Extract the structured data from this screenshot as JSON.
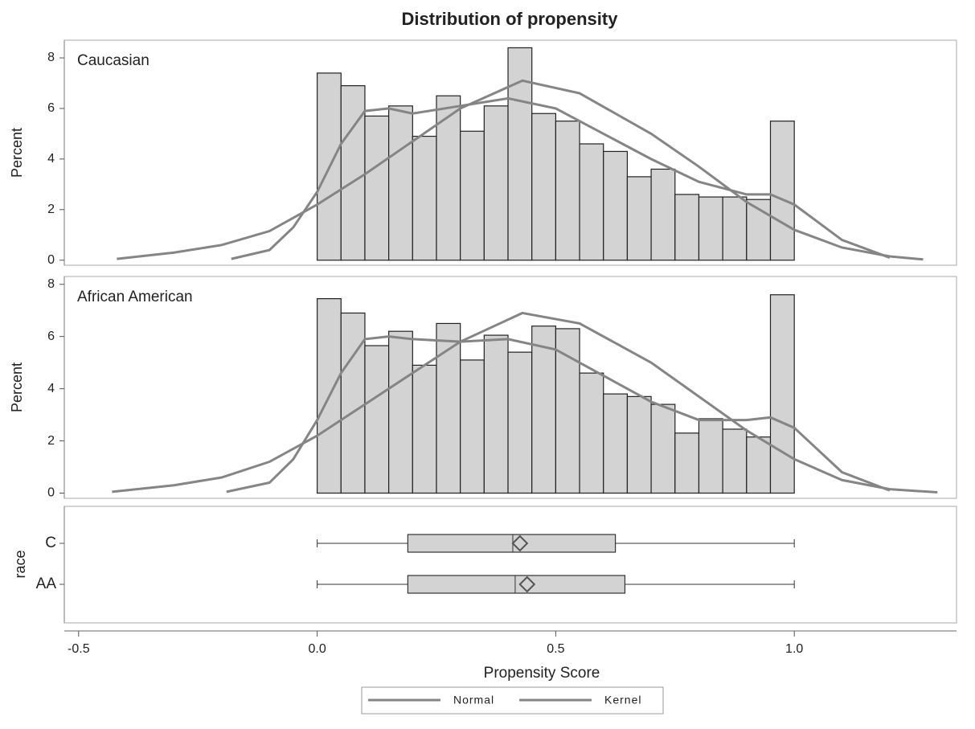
{
  "chart_data": {
    "type": "histogram",
    "title": "Distribution of propensity",
    "x_label": "Propensity Score",
    "xlim": [
      -0.53,
      1.34
    ],
    "xticks": [
      -0.5,
      {
        "value": 0,
        "label": "0.0"
      },
      0.5,
      {
        "value": 1,
        "label": "1.0"
      }
    ],
    "bins": [
      0,
      0.05,
      0.1,
      0.15,
      0.2,
      0.25,
      0.3,
      0.35,
      0.4,
      0.45,
      0.5,
      0.55,
      0.6,
      0.65,
      0.7,
      0.75,
      0.8,
      0.85,
      0.9,
      0.95,
      1.0
    ],
    "bar_color": "#d3d3d3",
    "panels": [
      {
        "label": "Caucasian",
        "y_label": "Percent",
        "ylim": [
          -0.2,
          8.7
        ],
        "yticks": [
          0,
          2,
          4,
          6,
          8
        ],
        "counts": [
          7.4,
          6.9,
          5.7,
          6.1,
          4.9,
          6.5,
          5.1,
          6.1,
          8.4,
          5.8,
          5.5,
          4.6,
          4.3,
          3.3,
          3.6,
          2.6,
          2.5,
          2.5,
          2.4,
          5.5
        ],
        "series": [
          {
            "name": "Normal",
            "color": "#858585",
            "x": [
              -0.42,
              -0.3,
              -0.2,
              -0.1,
              0,
              0.1,
              0.2,
              0.3,
              0.43,
              0.55,
              0.7,
              0.8,
              0.9,
              1.0,
              1.1,
              1.2,
              1.27
            ],
            "values": [
              0.05,
              0.3,
              0.6,
              1.15,
              2.2,
              3.4,
              4.7,
              6.0,
              7.1,
              6.6,
              5.0,
              3.7,
              2.3,
              1.2,
              0.5,
              0.15,
              0.03
            ]
          },
          {
            "name": "Kernel",
            "color": "#858585",
            "x": [
              -0.18,
              -0.1,
              -0.05,
              0,
              0.05,
              0.1,
              0.15,
              0.2,
              0.3,
              0.4,
              0.5,
              0.6,
              0.7,
              0.8,
              0.9,
              0.95,
              1.0,
              1.1,
              1.2
            ],
            "values": [
              0.05,
              0.4,
              1.3,
              2.7,
              4.6,
              5.9,
              6.0,
              5.8,
              6.1,
              6.4,
              6.0,
              5.0,
              4.0,
              3.1,
              2.6,
              2.6,
              2.2,
              0.8,
              0.1
            ]
          }
        ]
      },
      {
        "label": "African American",
        "y_label": "Percent",
        "ylim": [
          -0.2,
          8.3
        ],
        "yticks": [
          0,
          2,
          4,
          6,
          8
        ],
        "counts": [
          7.45,
          6.9,
          5.65,
          6.2,
          4.9,
          6.5,
          5.1,
          6.05,
          5.4,
          6.4,
          6.3,
          4.6,
          3.8,
          3.7,
          3.4,
          2.3,
          2.85,
          2.45,
          2.15,
          7.6
        ],
        "series": [
          {
            "name": "Normal",
            "color": "#858585",
            "x": [
              -0.43,
              -0.3,
              -0.2,
              -0.1,
              0,
              0.1,
              0.2,
              0.3,
              0.43,
              0.55,
              0.7,
              0.8,
              0.9,
              1.0,
              1.1,
              1.2,
              1.3
            ],
            "values": [
              0.05,
              0.3,
              0.6,
              1.2,
              2.2,
              3.4,
              4.6,
              5.8,
              6.9,
              6.5,
              5.0,
              3.7,
              2.4,
              1.3,
              0.5,
              0.15,
              0.03
            ]
          },
          {
            "name": "Kernel",
            "color": "#858585",
            "x": [
              -0.19,
              -0.1,
              -0.05,
              0,
              0.05,
              0.1,
              0.15,
              0.2,
              0.3,
              0.4,
              0.5,
              0.6,
              0.7,
              0.8,
              0.9,
              0.95,
              1.0,
              1.1,
              1.2
            ],
            "values": [
              0.05,
              0.4,
              1.3,
              2.8,
              4.6,
              5.9,
              6.0,
              5.9,
              5.8,
              5.9,
              5.5,
              4.5,
              3.5,
              2.8,
              2.8,
              2.9,
              2.5,
              0.8,
              0.1
            ]
          }
        ]
      }
    ],
    "box": {
      "type": "box",
      "y_label": "race",
      "categories": [
        "C",
        "AA"
      ],
      "min": [
        0,
        0
      ],
      "q1": [
        0.19,
        0.19
      ],
      "median": [
        0.41,
        0.415
      ],
      "q3": [
        0.625,
        0.645
      ],
      "max": [
        1.0,
        1.0
      ],
      "mean": [
        0.425,
        0.44
      ]
    }
  }
}
